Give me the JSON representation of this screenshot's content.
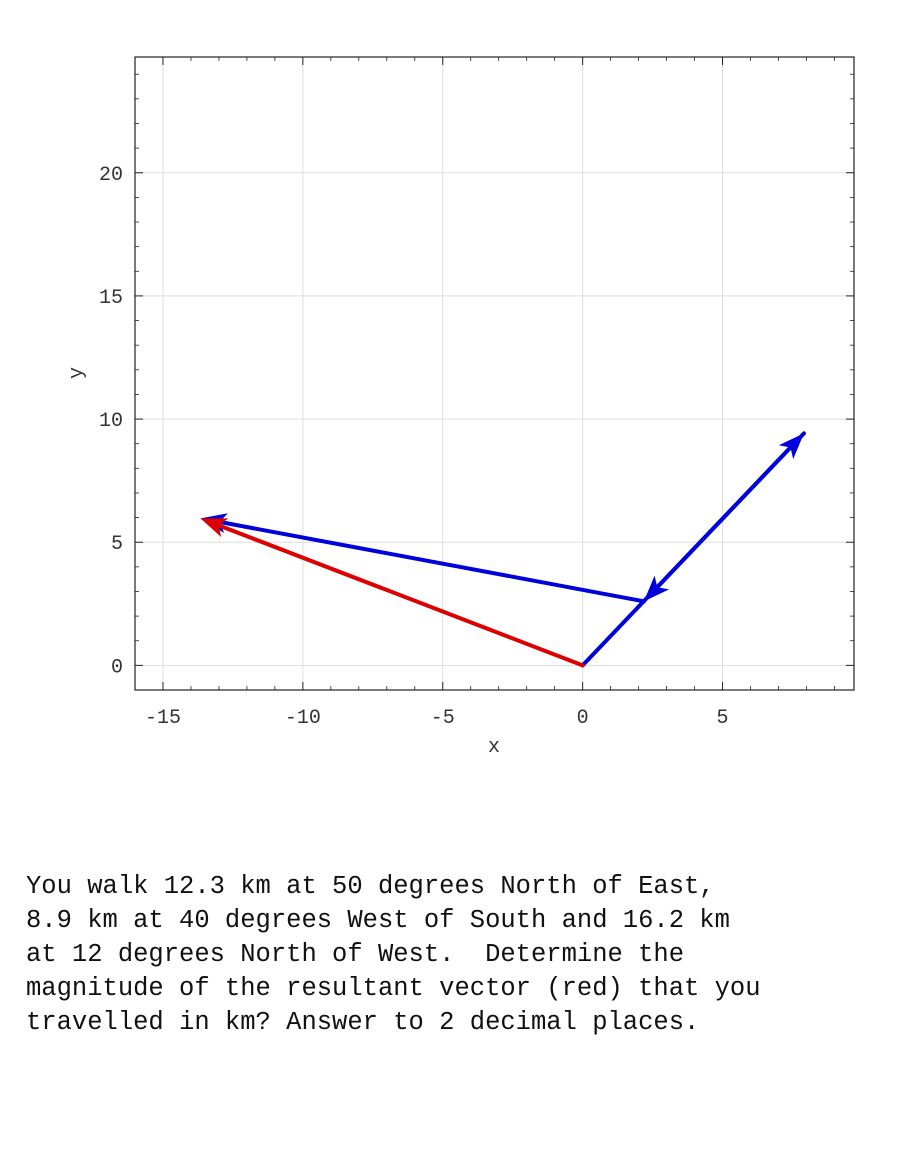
{
  "chart_data": {
    "type": "vector-diagram",
    "xlabel": "x",
    "ylabel": "y",
    "xlim": [
      -16,
      9.7
    ],
    "ylim": [
      -1,
      24.7
    ],
    "xticks": [
      -15,
      -10,
      -5,
      0,
      5
    ],
    "yticks": [
      0,
      5,
      10,
      15,
      20
    ],
    "grid": true,
    "vectors": [
      {
        "from": [
          0,
          0
        ],
        "to": [
          7.91,
          9.42
        ],
        "color": "#0000dd"
      },
      {
        "from": [
          7.91,
          9.42
        ],
        "to": [
          2.19,
          2.6
        ],
        "color": "#0000dd"
      },
      {
        "from": [
          2.19,
          2.6
        ],
        "to": [
          -13.66,
          5.97
        ],
        "color": "#0000dd"
      },
      {
        "from": [
          0,
          0
        ],
        "to": [
          -13.66,
          5.97
        ],
        "color": "#dd0000"
      }
    ]
  },
  "question": {
    "lines": [
      "You walk 12.3 km at 50 degrees North of East,",
      "8.9 km at 40 degrees West of South and 16.2 km",
      "at 12 degrees North of West.  Determine the",
      "magnitude of the resultant vector (red) that you",
      "travelled in km? Answer to 2 decimal places."
    ]
  }
}
